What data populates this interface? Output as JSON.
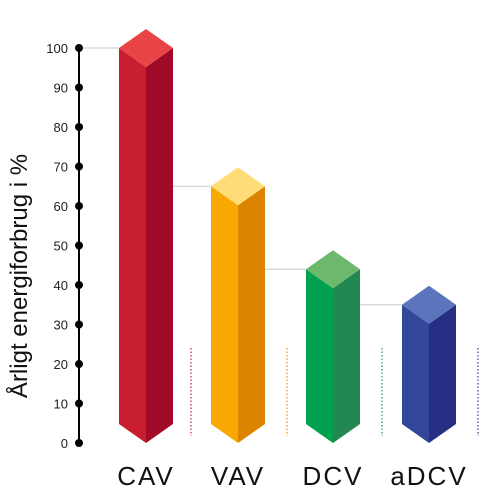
{
  "chart_data": {
    "type": "bar",
    "ylabel": "Årligt energiforbrug i %",
    "xlabel": "",
    "title": "",
    "categories": [
      "CAV",
      "VAV",
      "DCV",
      "aDCV"
    ],
    "values": [
      100,
      65,
      44,
      35
    ],
    "ylim": [
      0,
      100
    ],
    "yticks": [
      0,
      10,
      20,
      30,
      40,
      50,
      60,
      70,
      80,
      90,
      100
    ],
    "grid": false,
    "legend": "none",
    "style": "3d-prism",
    "colors": [
      {
        "top": "#e84345",
        "front": "#c81e30",
        "side": "#a00a28"
      },
      {
        "top": "#fedd78",
        "front": "#f8a800",
        "side": "#dc8400"
      },
      {
        "top": "#6cb86c",
        "front": "#00a14e",
        "side": "#208850"
      },
      {
        "top": "#5b74bb",
        "front": "#32479a",
        "side": "#262f84"
      }
    ],
    "dotted_line_colors": [
      "#c81e30",
      "#f08a24",
      "#20964c",
      "#2e3f94"
    ],
    "guide_line_color": "#c8c8c8",
    "axis_color": "#000000"
  }
}
